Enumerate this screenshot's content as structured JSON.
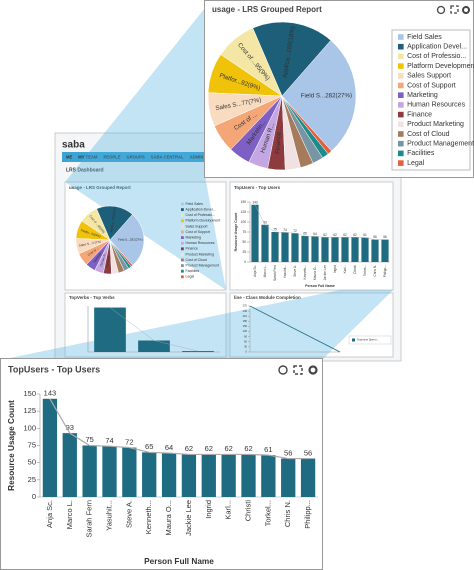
{
  "app": {
    "logo": "saba",
    "nav": [
      "ME",
      "MY TEAM",
      "PEOPLE",
      "GROUPS",
      "SABA CENTRAL",
      "ADMIN"
    ],
    "page_title": "LRS Dashboard"
  },
  "chart_data": [
    {
      "type": "pie",
      "title": "usage - LRS Grouped Report",
      "categories": [
        "Field Sales",
        "Application Devel...",
        "Cost of Professio...",
        "Platform Development",
        "Sales Support",
        "Cost of Support",
        "Marketing",
        "Human Resources",
        "Finance",
        "Product Marketing",
        "Cost of Cloud",
        "Product Management",
        "Facilities",
        "Legal"
      ],
      "values": [
        282,
        188,
        95,
        92,
        77,
        65,
        50,
        45,
        40,
        35,
        30,
        25,
        15,
        10
      ],
      "value_labels": [
        "Field S...282(27%)",
        "Applica...188(18%)",
        "Cost of ...95(9%)",
        "Platfor...92(9%)",
        "Sales S...77(7%)",
        "Cost of ...",
        "Marketin...",
        "Human R...",
        "Finance...",
        null,
        null,
        null,
        null,
        null
      ],
      "colors": [
        "#a9c6e8",
        "#1d5e78",
        "#f4e7a6",
        "#f1c20a",
        "#f9dcc0",
        "#f4a676",
        "#7e5fc4",
        "#c3a6e2",
        "#8e3b3f",
        "#f1e2e2",
        "#a57b5c",
        "#7895a4",
        "#1b8b8b",
        "#e2603e"
      ]
    },
    {
      "type": "bar",
      "title": "TopUsers - Top Users",
      "x_label": "Person Full Name",
      "y_label": "Resource Usage Count",
      "categories": [
        "Anja Sc.",
        "Marco L.",
        "Sarah Fern",
        "Yasuhit...",
        "Steve A.",
        "Kenneth...",
        "Maura O...",
        "Jackie Lee",
        "Ingrid",
        "Karl...",
        "Christi",
        "Torkel...",
        "Chris N.",
        "Philipp..."
      ],
      "values": [
        143,
        93,
        75,
        74,
        72,
        65,
        64,
        62,
        62,
        62,
        62,
        61,
        56,
        56
      ],
      "color": "#1f6b82",
      "ylim": [
        0,
        150
      ],
      "yticks": [
        0,
        25,
        50,
        75,
        100,
        125,
        150
      ],
      "trend_line": true
    },
    {
      "type": "bar",
      "title": "TopVerbs - Top Verbs",
      "values": [
        290,
        75,
        6
      ],
      "color": "#1f6b82",
      "ylim": [
        0,
        300
      ],
      "trend_line": true
    },
    {
      "type": "line",
      "title": "line - Class Module Completion",
      "ylim": [
        0,
        270
      ],
      "yticks": [
        0,
        30,
        60,
        90,
        120,
        150,
        180,
        210,
        240,
        270
      ],
      "series": [
        {
          "name": "Total time Spent i...",
          "color": "#1f6b82",
          "values": [
            270,
            0
          ]
        }
      ]
    }
  ]
}
